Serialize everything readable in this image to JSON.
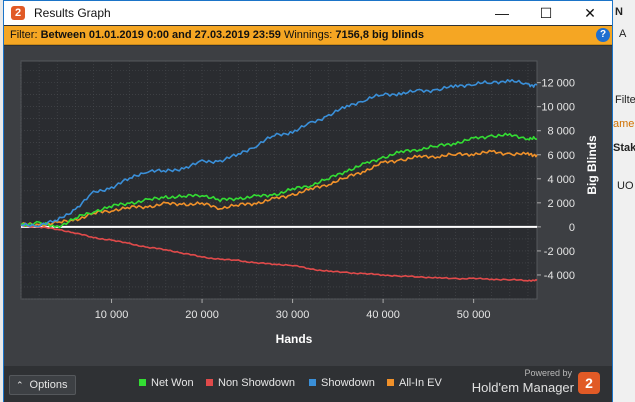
{
  "window": {
    "title": "Results Graph",
    "app_icon": "2",
    "controls": {
      "minimize": "—",
      "maximize": "☐",
      "close": "✕"
    }
  },
  "filter": {
    "label": "Filter:",
    "range": "Between 01.01.2019 0:00 and 27.03.2019 23:59",
    "winnings_label": "Winnings:",
    "winnings_value": "7156,8 big blinds",
    "help_icon": "?"
  },
  "background_window": {
    "fragments": [
      "N",
      "A",
      "Filter",
      "ame",
      "Stak",
      "UO"
    ]
  },
  "footer": {
    "options_label": "Options",
    "powered_by": "Powered by",
    "brand_name": "Hold'em Manager",
    "brand_logo": "2"
  },
  "colors": {
    "net_won": "#33dd33",
    "non_showdown": "#e04a4a",
    "showdown": "#3a8fd8",
    "allin_ev": "#f0912a",
    "zero_line": "#ffffff",
    "plot_bg": "#2a2c30",
    "grid": "#4a4c50"
  },
  "chart_data": {
    "type": "line",
    "xlabel": "Hands",
    "ylabel": "Big Blinds",
    "xlim": [
      0,
      57000
    ],
    "ylim": [
      -6000,
      13800
    ],
    "x_ticks": [
      10000,
      20000,
      30000,
      40000,
      50000
    ],
    "x_tick_labels": [
      "10 000",
      "20 000",
      "30 000",
      "40 000",
      "50 000"
    ],
    "y_ticks": [
      12000,
      10000,
      8000,
      6000,
      4000,
      2000,
      0,
      -2000,
      -4000
    ],
    "y_tick_labels": [
      "12 000",
      "10 000",
      "8 000",
      "6 000",
      "4 000",
      "2 000",
      "0",
      "-2 000",
      "-4 000"
    ],
    "y_axis_position": "right",
    "grid": true,
    "legend_position": "bottom",
    "x": [
      0,
      2000,
      4000,
      6000,
      8000,
      10000,
      12000,
      14000,
      16000,
      18000,
      20000,
      22000,
      24000,
      26000,
      28000,
      30000,
      32000,
      34000,
      36000,
      38000,
      40000,
      42000,
      44000,
      46000,
      48000,
      50000,
      52000,
      54000,
      56000,
      57000
    ],
    "series": [
      {
        "name": "Net Won",
        "values": [
          200,
          300,
          0,
          700,
          1300,
          1700,
          2000,
          2200,
          2500,
          2500,
          2700,
          2200,
          2400,
          2500,
          2700,
          3100,
          3500,
          4000,
          4700,
          5200,
          5800,
          6200,
          6500,
          6700,
          7000,
          7300,
          7600,
          7600,
          7400,
          7300
        ]
      },
      {
        "name": "Non Showdown",
        "values": [
          100,
          0,
          -200,
          -500,
          -900,
          -1100,
          -1400,
          -1700,
          -1900,
          -2200,
          -2500,
          -2700,
          -2800,
          -3000,
          -3100,
          -3200,
          -3500,
          -3700,
          -3800,
          -3900,
          -4000,
          -4100,
          -4150,
          -4250,
          -4300,
          -4300,
          -4350,
          -4400,
          -4450,
          -4450
        ]
      },
      {
        "name": "Showdown",
        "values": [
          100,
          200,
          500,
          1500,
          2800,
          3300,
          4000,
          4700,
          4600,
          4900,
          5400,
          5500,
          6000,
          6800,
          7600,
          7900,
          8600,
          9300,
          10000,
          10600,
          11000,
          11100,
          11300,
          11400,
          11700,
          11900,
          12000,
          12200,
          11800,
          11800
        ]
      },
      {
        "name": "All-In EV",
        "values": [
          200,
          200,
          300,
          600,
          1100,
          1400,
          1600,
          1700,
          1900,
          1900,
          1900,
          1600,
          1800,
          2000,
          2300,
          2700,
          3100,
          3600,
          4100,
          4700,
          5300,
          5600,
          5800,
          5900,
          6000,
          6100,
          6200,
          6100,
          6000,
          6000
        ]
      }
    ]
  }
}
